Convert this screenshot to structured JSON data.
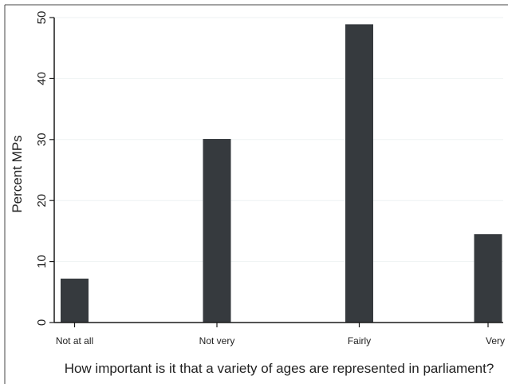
{
  "chart_data": {
    "type": "bar",
    "title": "",
    "xlabel": "How important is it that a variety of ages are represented in parliament?",
    "ylabel": "Percent MPs",
    "categories": [
      "Not at all",
      "Not very",
      "Fairly",
      "Very"
    ],
    "values": [
      7.2,
      30.1,
      48.9,
      14.5
    ],
    "ylim": [
      0,
      50
    ],
    "yticks": [
      "0",
      "10",
      "20",
      "30",
      "40",
      "50"
    ],
    "grid": true,
    "legend": "none",
    "colors": {
      "bar": "#363a3e",
      "axis": "#1a1a1a",
      "grid": "#eef2f3",
      "frame": "#444444"
    }
  }
}
